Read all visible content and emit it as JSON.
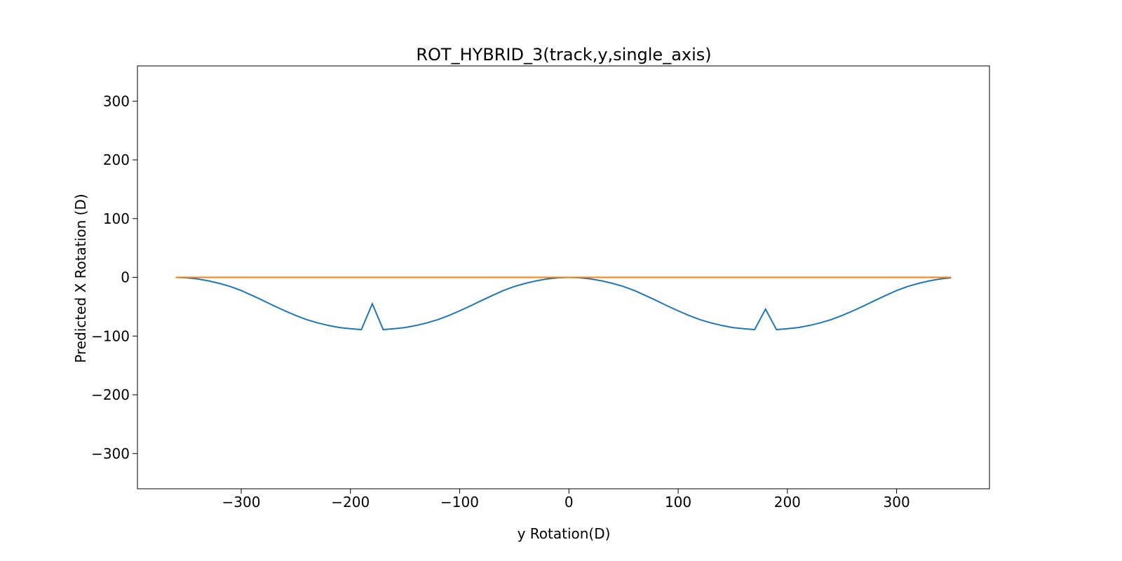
{
  "chart_data": {
    "type": "line",
    "title": "ROT_HYBRID_3(track,y,single_axis)",
    "xlabel": "y Rotation(D)",
    "ylabel": "Predicted X Rotation (D)",
    "xlim": [
      -395,
      385
    ],
    "ylim": [
      -360,
      360
    ],
    "xticks": [
      -300,
      -200,
      -100,
      0,
      100,
      200,
      300
    ],
    "yticks": [
      -300,
      -200,
      -100,
      0,
      100,
      200,
      300
    ],
    "xtick_labels": [
      "−300",
      "−200",
      "−100",
      "0",
      "100",
      "200",
      "300"
    ],
    "ytick_labels": [
      "−300",
      "−200",
      "−100",
      "0",
      "100",
      "200",
      "300"
    ],
    "grid": false,
    "series": [
      {
        "color": "#1f77b4",
        "x": [
          -360,
          -350,
          -340,
          -330,
          -320,
          -310,
          -300,
          -290,
          -280,
          -270,
          -260,
          -250,
          -240,
          -230,
          -220,
          -210,
          -200,
          -190,
          -180,
          -170,
          -160,
          -150,
          -140,
          -130,
          -120,
          -110,
          -100,
          -90,
          -80,
          -70,
          -60,
          -50,
          -40,
          -30,
          -20,
          -10,
          0,
          10,
          20,
          30,
          40,
          50,
          60,
          70,
          80,
          90,
          100,
          110,
          120,
          130,
          140,
          150,
          160,
          170,
          180,
          190,
          200,
          210,
          220,
          230,
          240,
          250,
          260,
          270,
          280,
          290,
          300,
          310,
          320,
          330,
          340,
          350
        ],
        "y": [
          0,
          -0.8,
          -2.7,
          -6,
          -10.3,
          -15.6,
          -22.5,
          -30.8,
          -39.5,
          -48.5,
          -57,
          -65,
          -72,
          -77.5,
          -82,
          -85.5,
          -87.5,
          -89,
          -45,
          -89,
          -87.5,
          -85.5,
          -82,
          -77.5,
          -72,
          -65,
          -57,
          -48.5,
          -39.5,
          -30.8,
          -22.5,
          -15.6,
          -10.3,
          -6,
          -2.7,
          -0.8,
          0,
          -0.8,
          -2.7,
          -6,
          -10.3,
          -15.6,
          -22.5,
          -30.8,
          -39.5,
          -48.5,
          -57,
          -65,
          -72,
          -77.5,
          -82,
          -85.5,
          -87.5,
          -89,
          -54,
          -89,
          -87.5,
          -85.5,
          -82,
          -77.5,
          -72,
          -65,
          -57,
          -48.5,
          -39.5,
          -30.8,
          -22.5,
          -15.6,
          -10.3,
          -6,
          -2.7,
          -0.8
        ]
      },
      {
        "color": "#ff7f0e",
        "x": [
          -360,
          350
        ],
        "y": [
          0,
          0
        ]
      }
    ]
  }
}
